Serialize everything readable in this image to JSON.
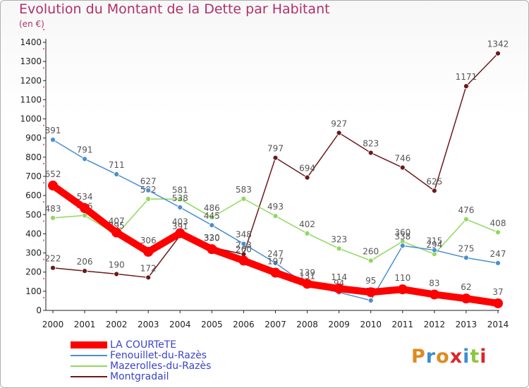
{
  "title": "Evolution du Montant de la Dette par Habitant",
  "unit": "(en €)",
  "logo": "Proxiti",
  "chart_data": {
    "type": "line",
    "x": [
      "2000",
      "2001",
      "2002",
      "2003",
      "2004",
      "2005",
      "2006",
      "2007",
      "2008",
      "2009",
      "2010",
      "2011",
      "2012",
      "2013",
      "2014"
    ],
    "yticks": [
      0,
      100,
      200,
      300,
      400,
      500,
      600,
      700,
      800,
      900,
      1000,
      1100,
      1200,
      1300,
      1400
    ],
    "ylim": [
      0,
      1400
    ],
    "grid": false,
    "legend_position": "bottom-left",
    "series": [
      {
        "name": "LA COURTeTE",
        "color": "#ff0000",
        "values": [
          652,
          534,
          407,
          306,
          403,
          320,
          260,
          197,
          139,
          114,
          95,
          110,
          83,
          62,
          37
        ]
      },
      {
        "name": "Fenouillet-du-Razès",
        "color": "#4a8fd0",
        "values": [
          891,
          791,
          711,
          627,
          538,
          445,
          348,
          247,
          131,
          94,
          52,
          338,
          315,
          275,
          247
        ]
      },
      {
        "name": "Mazerolles-du-Razès",
        "color": "#90d860",
        "values": [
          483,
          496,
          395,
          582,
          581,
          486,
          583,
          493,
          402,
          323,
          260,
          360,
          294,
          476,
          408
        ]
      },
      {
        "name": "Montgradail",
        "color": "#6b1a1a",
        "values": [
          222,
          206,
          190,
          172,
          391,
          330,
          293,
          797,
          694,
          927,
          823,
          746,
          625,
          1171,
          1342
        ]
      }
    ]
  }
}
